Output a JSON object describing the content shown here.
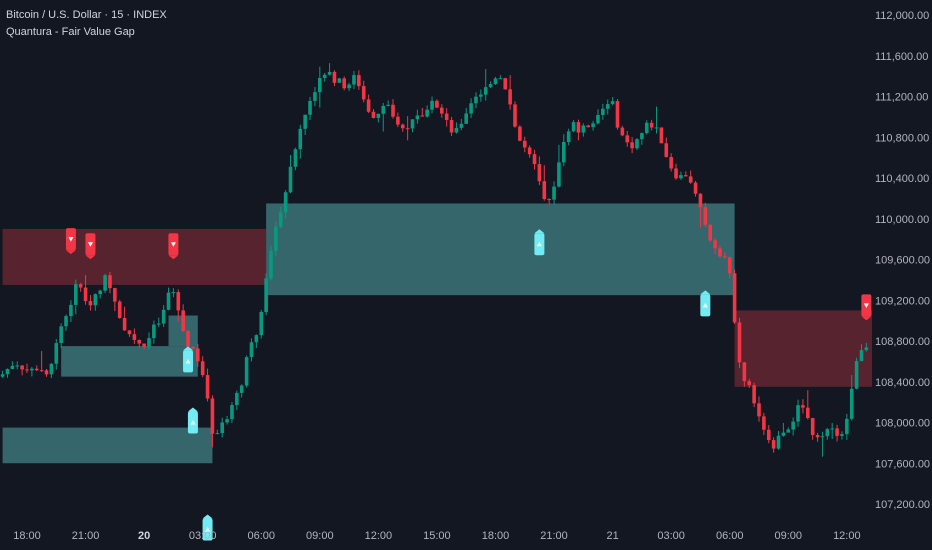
{
  "legend": {
    "symbol": "Bitcoin / U.S. Dollar · 15 · INDEX",
    "indicator": "Quantura - Fair Value Gap"
  },
  "colors": {
    "background": "#131722",
    "up": "#089981",
    "down": "#f23645",
    "bull_zone": "#3c7478",
    "bear_zone": "#5e2530",
    "bull_marker": "#72ebf2",
    "bear_marker": "#f23645"
  },
  "chart_data": {
    "type": "candlestick",
    "interval": "15m",
    "y_axis": {
      "min": 107000,
      "max": 112100,
      "ticks": [
        {
          "value": 112000,
          "label": "112,000.00"
        },
        {
          "value": 111600,
          "label": "111,600.00"
        },
        {
          "value": 111200,
          "label": "111,200.00"
        },
        {
          "value": 110800,
          "label": "110,800.00"
        },
        {
          "value": 110400,
          "label": "110,400.00"
        },
        {
          "value": 110000,
          "label": "110,000.00"
        },
        {
          "value": 109600,
          "label": "109,600.00"
        },
        {
          "value": 109200,
          "label": "109,200.00"
        },
        {
          "value": 108800,
          "label": "108,800.00"
        },
        {
          "value": 108400,
          "label": "108,400.00"
        },
        {
          "value": 108000,
          "label": "108,000.00"
        },
        {
          "value": 107600,
          "label": "107,600.00"
        },
        {
          "value": 107200,
          "label": "107,200.00"
        }
      ]
    },
    "x_axis": {
      "ticks": [
        {
          "label": "18:00",
          "t": 0,
          "bold": false
        },
        {
          "label": "21:00",
          "t": 12,
          "bold": false
        },
        {
          "label": "20",
          "t": 24,
          "bold": true
        },
        {
          "label": "03:00",
          "t": 36,
          "bold": false
        },
        {
          "label": "06:00",
          "t": 48,
          "bold": false
        },
        {
          "label": "09:00",
          "t": 60,
          "bold": false
        },
        {
          "label": "12:00",
          "t": 72,
          "bold": false
        },
        {
          "label": "15:00",
          "t": 84,
          "bold": false
        },
        {
          "label": "18:00",
          "t": 96,
          "bold": false
        },
        {
          "label": "21:00",
          "t": 108,
          "bold": false
        },
        {
          "label": "21",
          "t": 120,
          "bold": false
        },
        {
          "label": "03:00",
          "t": 132,
          "bold": false
        },
        {
          "label": "06:00",
          "t": 144,
          "bold": false
        },
        {
          "label": "09:00",
          "t": 156,
          "bold": false
        },
        {
          "label": "12:00",
          "t": 168,
          "bold": false
        }
      ]
    },
    "price_path": [
      [
        -5,
        108450
      ],
      [
        -2,
        108600
      ],
      [
        1,
        108500
      ],
      [
        3,
        108550
      ],
      [
        5,
        108450
      ],
      [
        7,
        108900
      ],
      [
        9,
        109100
      ],
      [
        11,
        109400
      ],
      [
        13,
        109150
      ],
      [
        15,
        109300
      ],
      [
        17,
        109450
      ],
      [
        19,
        109100
      ],
      [
        21,
        108900
      ],
      [
        23,
        108800
      ],
      [
        25,
        108750
      ],
      [
        26,
        108900
      ],
      [
        28,
        109000
      ],
      [
        30,
        109350
      ],
      [
        31,
        109200
      ],
      [
        33,
        108800
      ],
      [
        35,
        108700
      ],
      [
        37,
        108400
      ],
      [
        38,
        108000
      ],
      [
        39,
        107800
      ],
      [
        40,
        108000
      ],
      [
        42,
        108100
      ],
      [
        44,
        108300
      ],
      [
        46,
        108700
      ],
      [
        48,
        108900
      ],
      [
        49,
        109300
      ],
      [
        51,
        109800
      ],
      [
        53,
        110200
      ],
      [
        54,
        110400
      ],
      [
        56,
        110800
      ],
      [
        58,
        111100
      ],
      [
        60,
        111350
      ],
      [
        62,
        111450
      ],
      [
        64,
        111350
      ],
      [
        66,
        111300
      ],
      [
        68,
        111400
      ],
      [
        70,
        111100
      ],
      [
        72,
        111000
      ],
      [
        74,
        111200
      ],
      [
        76,
        110900
      ],
      [
        78,
        110850
      ],
      [
        80,
        111050
      ],
      [
        82,
        111000
      ],
      [
        84,
        111150
      ],
      [
        86,
        111050
      ],
      [
        88,
        110800
      ],
      [
        90,
        111000
      ],
      [
        92,
        111200
      ],
      [
        94,
        111250
      ],
      [
        96,
        111350
      ],
      [
        97,
        111450
      ],
      [
        99,
        111250
      ],
      [
        101,
        110800
      ],
      [
        103,
        110650
      ],
      [
        105,
        110450
      ],
      [
        107,
        110050
      ],
      [
        108,
        110250
      ],
      [
        110,
        110650
      ],
      [
        112,
        110950
      ],
      [
        114,
        110850
      ],
      [
        116,
        110950
      ],
      [
        118,
        111050
      ],
      [
        120,
        111200
      ],
      [
        122,
        110850
      ],
      [
        124,
        110700
      ],
      [
        126,
        110800
      ],
      [
        128,
        110950
      ],
      [
        130,
        110850
      ],
      [
        132,
        110550
      ],
      [
        134,
        110400
      ],
      [
        136,
        110450
      ],
      [
        138,
        110150
      ],
      [
        140,
        109850
      ],
      [
        142,
        109700
      ],
      [
        144,
        109600
      ],
      [
        145,
        109250
      ],
      [
        146,
        108800
      ],
      [
        147,
        108450
      ],
      [
        149,
        108300
      ],
      [
        151,
        107950
      ],
      [
        153,
        107750
      ],
      [
        155,
        107900
      ],
      [
        157,
        108000
      ],
      [
        159,
        108200
      ],
      [
        161,
        107950
      ],
      [
        163,
        107800
      ],
      [
        165,
        107950
      ],
      [
        167,
        107900
      ],
      [
        168,
        107950
      ],
      [
        169,
        108200
      ],
      [
        170,
        108500
      ],
      [
        171,
        108650
      ],
      [
        172,
        108700
      ]
    ],
    "bull_fvg_zones": [
      {
        "t_start": -5,
        "t_end": 38,
        "top": 107950,
        "bottom": 107600
      },
      {
        "t_start": 7,
        "t_end": 35,
        "top": 108750,
        "bottom": 108450
      },
      {
        "t_start": 29,
        "t_end": 35,
        "top": 109050,
        "bottom": 108750
      },
      {
        "t_start": 49,
        "t_end": 145,
        "top": 110150,
        "bottom": 109250
      }
    ],
    "bear_fvg_zones": [
      {
        "t_start": -5,
        "t_end": 49,
        "top": 109900,
        "bottom": 109350
      },
      {
        "t_start": 145,
        "t_end": 175,
        "top": 109100,
        "bottom": 108350
      }
    ],
    "bull_signals": [
      {
        "t": 33,
        "price": 108600
      },
      {
        "t": 34,
        "price": 108000
      },
      {
        "t": 37,
        "price": 106950
      },
      {
        "t": 105,
        "price": 109750
      },
      {
        "t": 139,
        "price": 109150
      }
    ],
    "bear_signals": [
      {
        "t": 9,
        "price": 109800
      },
      {
        "t": 13,
        "price": 109750
      },
      {
        "t": 30,
        "price": 109750
      },
      {
        "t": 172,
        "price": 109150
      }
    ]
  }
}
